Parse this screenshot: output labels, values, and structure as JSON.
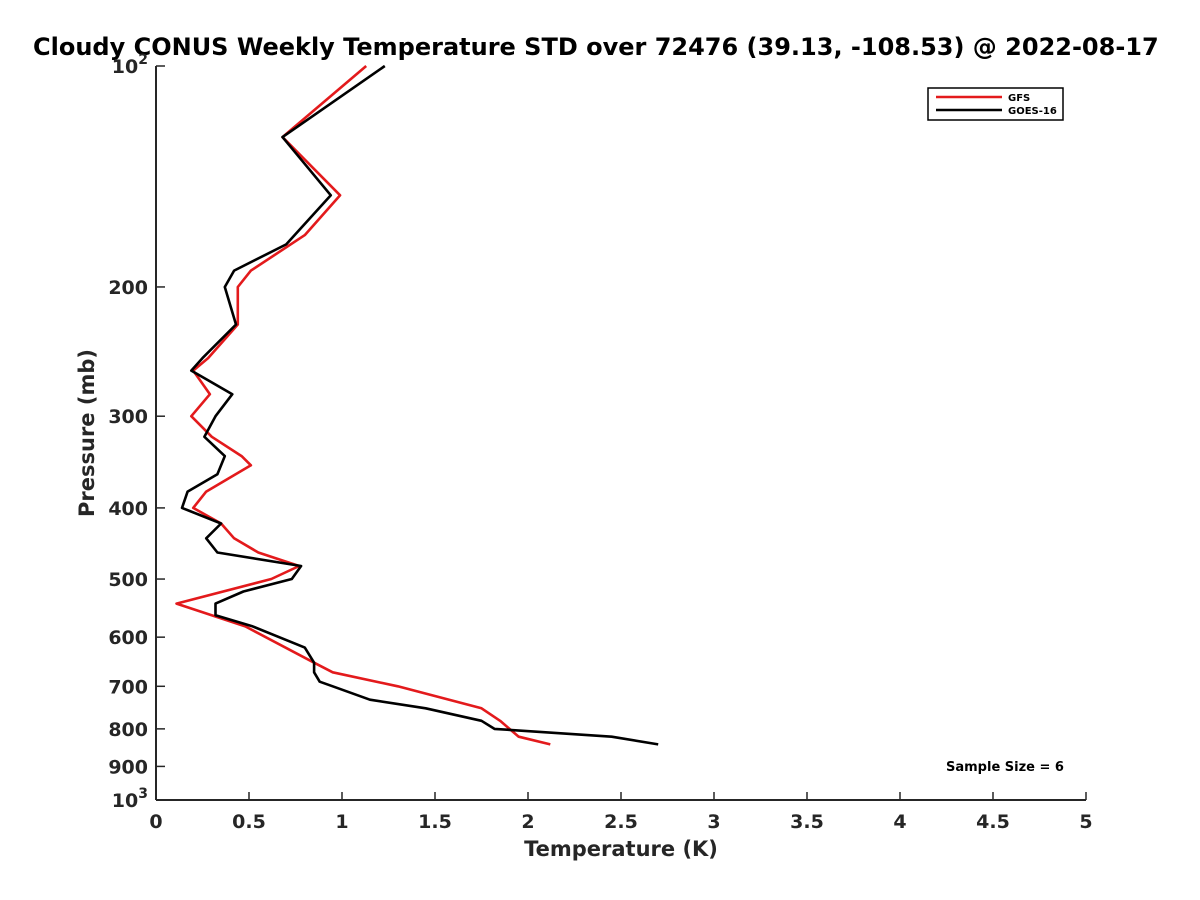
{
  "chart_data": {
    "type": "line",
    "title": "Cloudy CONUS Weekly Temperature STD over 72476 (39.13, -108.53) @ 2022-08-17",
    "xlabel": "Temperature (K)",
    "ylabel": "Pressure (mb)",
    "xlim": [
      0,
      5
    ],
    "ylim": [
      100,
      1000
    ],
    "yscale": "log",
    "yreversed": true,
    "x_ticks": [
      "0",
      "0.5",
      "1",
      "1.5",
      "2",
      "2.5",
      "3",
      "3.5",
      "4",
      "4.5",
      "5"
    ],
    "y_ticks": [
      {
        "value": 100,
        "base": "10",
        "exp": "2"
      },
      {
        "value": 200,
        "label": "200"
      },
      {
        "value": 300,
        "label": "300"
      },
      {
        "value": 400,
        "label": "400"
      },
      {
        "value": 500,
        "label": "500"
      },
      {
        "value": 600,
        "label": "600"
      },
      {
        "value": 700,
        "label": "700"
      },
      {
        "value": 800,
        "label": "800"
      },
      {
        "value": 900,
        "label": "900"
      },
      {
        "value": 1000,
        "base": "10",
        "exp": "3"
      }
    ],
    "grid": false,
    "legend_position": "top-right",
    "annotation": "Sample Size = 6",
    "series": [
      {
        "name": "GFS",
        "color": "#e31a1c",
        "points": [
          [
            1.13,
            100
          ],
          [
            0.68,
            125
          ],
          [
            0.99,
            150
          ],
          [
            0.8,
            170
          ],
          [
            0.51,
            190
          ],
          [
            0.44,
            200
          ],
          [
            0.44,
            225
          ],
          [
            0.28,
            250
          ],
          [
            0.2,
            260
          ],
          [
            0.29,
            280
          ],
          [
            0.19,
            300
          ],
          [
            0.3,
            320
          ],
          [
            0.46,
            340
          ],
          [
            0.51,
            350
          ],
          [
            0.27,
            380
          ],
          [
            0.2,
            400
          ],
          [
            0.35,
            420
          ],
          [
            0.42,
            440
          ],
          [
            0.55,
            460
          ],
          [
            0.77,
            480
          ],
          [
            0.62,
            500
          ],
          [
            0.11,
            540
          ],
          [
            0.48,
            580
          ],
          [
            0.85,
            650
          ],
          [
            0.95,
            670
          ],
          [
            1.3,
            700
          ],
          [
            1.75,
            750
          ],
          [
            1.85,
            780
          ],
          [
            1.95,
            820
          ],
          [
            2.12,
            840
          ]
        ]
      },
      {
        "name": "GOES-16",
        "color": "#000000",
        "points": [
          [
            1.23,
            100
          ],
          [
            0.68,
            125
          ],
          [
            0.94,
            150
          ],
          [
            0.7,
            175
          ],
          [
            0.42,
            190
          ],
          [
            0.37,
            200
          ],
          [
            0.43,
            225
          ],
          [
            0.25,
            250
          ],
          [
            0.19,
            260
          ],
          [
            0.41,
            280
          ],
          [
            0.32,
            300
          ],
          [
            0.26,
            320
          ],
          [
            0.37,
            340
          ],
          [
            0.33,
            360
          ],
          [
            0.17,
            380
          ],
          [
            0.14,
            400
          ],
          [
            0.35,
            420
          ],
          [
            0.27,
            440
          ],
          [
            0.33,
            460
          ],
          [
            0.78,
            480
          ],
          [
            0.73,
            500
          ],
          [
            0.47,
            520
          ],
          [
            0.32,
            540
          ],
          [
            0.32,
            560
          ],
          [
            0.52,
            580
          ],
          [
            0.8,
            620
          ],
          [
            0.85,
            650
          ],
          [
            0.85,
            670
          ],
          [
            0.88,
            690
          ],
          [
            0.95,
            700
          ],
          [
            1.15,
            730
          ],
          [
            1.45,
            750
          ],
          [
            1.75,
            780
          ],
          [
            1.82,
            800
          ],
          [
            2.45,
            820
          ],
          [
            2.7,
            840
          ]
        ]
      }
    ]
  }
}
